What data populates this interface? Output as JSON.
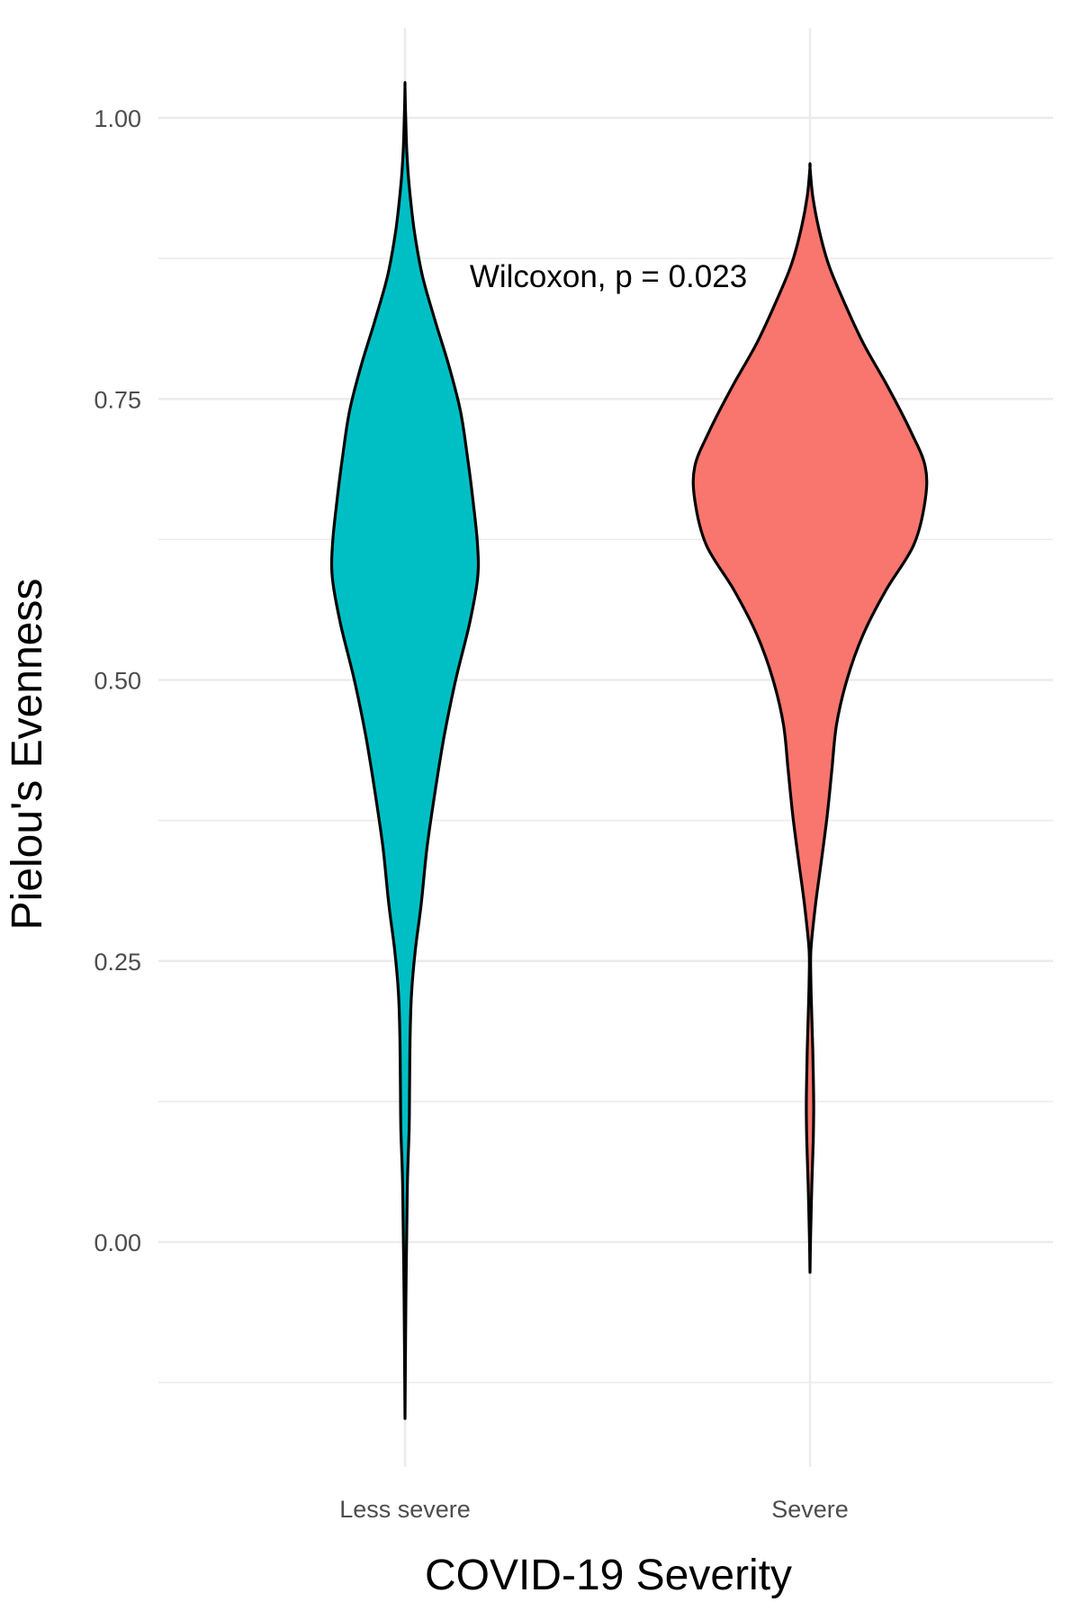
{
  "chart_data": {
    "type": "violin",
    "title": "",
    "xlabel": "COVID-19 Severity",
    "ylabel": "Pielou's Evenness",
    "ylim": [
      -0.2,
      1.08
    ],
    "yticks": [
      0.0,
      0.25,
      0.5,
      0.75,
      1.0
    ],
    "ytick_labels": [
      "0.00",
      "0.25",
      "0.50",
      "0.75",
      "1.00"
    ],
    "grid": true,
    "legend": "none",
    "annotation": "Wilcoxon, p = 0.023",
    "annotation_y": 0.86,
    "categories": [
      "Less severe",
      "Severe"
    ],
    "series": [
      {
        "category": "Less severe",
        "color": "#00BFC4",
        "min": -0.157,
        "max": 1.028,
        "density_profile": [
          [
            -0.157,
            0.0
          ],
          [
            -0.05,
            0.004
          ],
          [
            0.05,
            0.01
          ],
          [
            0.1,
            0.018
          ],
          [
            0.14,
            0.02
          ],
          [
            0.18,
            0.022
          ],
          [
            0.22,
            0.028
          ],
          [
            0.26,
            0.045
          ],
          [
            0.3,
            0.07
          ],
          [
            0.35,
            0.095
          ],
          [
            0.4,
            0.13
          ],
          [
            0.45,
            0.17
          ],
          [
            0.5,
            0.22
          ],
          [
            0.55,
            0.28
          ],
          [
            0.59,
            0.315
          ],
          [
            0.62,
            0.315
          ],
          [
            0.66,
            0.295
          ],
          [
            0.7,
            0.27
          ],
          [
            0.74,
            0.24
          ],
          [
            0.78,
            0.19
          ],
          [
            0.82,
            0.13
          ],
          [
            0.86,
            0.075
          ],
          [
            0.9,
            0.04
          ],
          [
            0.94,
            0.018
          ],
          [
            0.97,
            0.008
          ],
          [
            1.0,
            0.003
          ],
          [
            1.028,
            0.0
          ]
        ]
      },
      {
        "category": "Severe",
        "color": "#F8766D",
        "min": -0.027,
        "max": 0.956,
        "density_profile": [
          [
            -0.027,
            0.0
          ],
          [
            0.01,
            0.003
          ],
          [
            0.05,
            0.008
          ],
          [
            0.09,
            0.014
          ],
          [
            0.12,
            0.016
          ],
          [
            0.15,
            0.014
          ],
          [
            0.17,
            0.012
          ],
          [
            0.2,
            0.008
          ],
          [
            0.23,
            0.004
          ],
          [
            0.26,
            0.004
          ],
          [
            0.3,
            0.024
          ],
          [
            0.34,
            0.05
          ],
          [
            0.38,
            0.075
          ],
          [
            0.42,
            0.095
          ],
          [
            0.46,
            0.115
          ],
          [
            0.5,
            0.16
          ],
          [
            0.54,
            0.23
          ],
          [
            0.58,
            0.33
          ],
          [
            0.62,
            0.45
          ],
          [
            0.66,
            0.5
          ],
          [
            0.69,
            0.5
          ],
          [
            0.72,
            0.44
          ],
          [
            0.76,
            0.34
          ],
          [
            0.8,
            0.23
          ],
          [
            0.84,
            0.14
          ],
          [
            0.87,
            0.08
          ],
          [
            0.9,
            0.04
          ],
          [
            0.93,
            0.012
          ],
          [
            0.956,
            0.0
          ]
        ]
      }
    ]
  }
}
